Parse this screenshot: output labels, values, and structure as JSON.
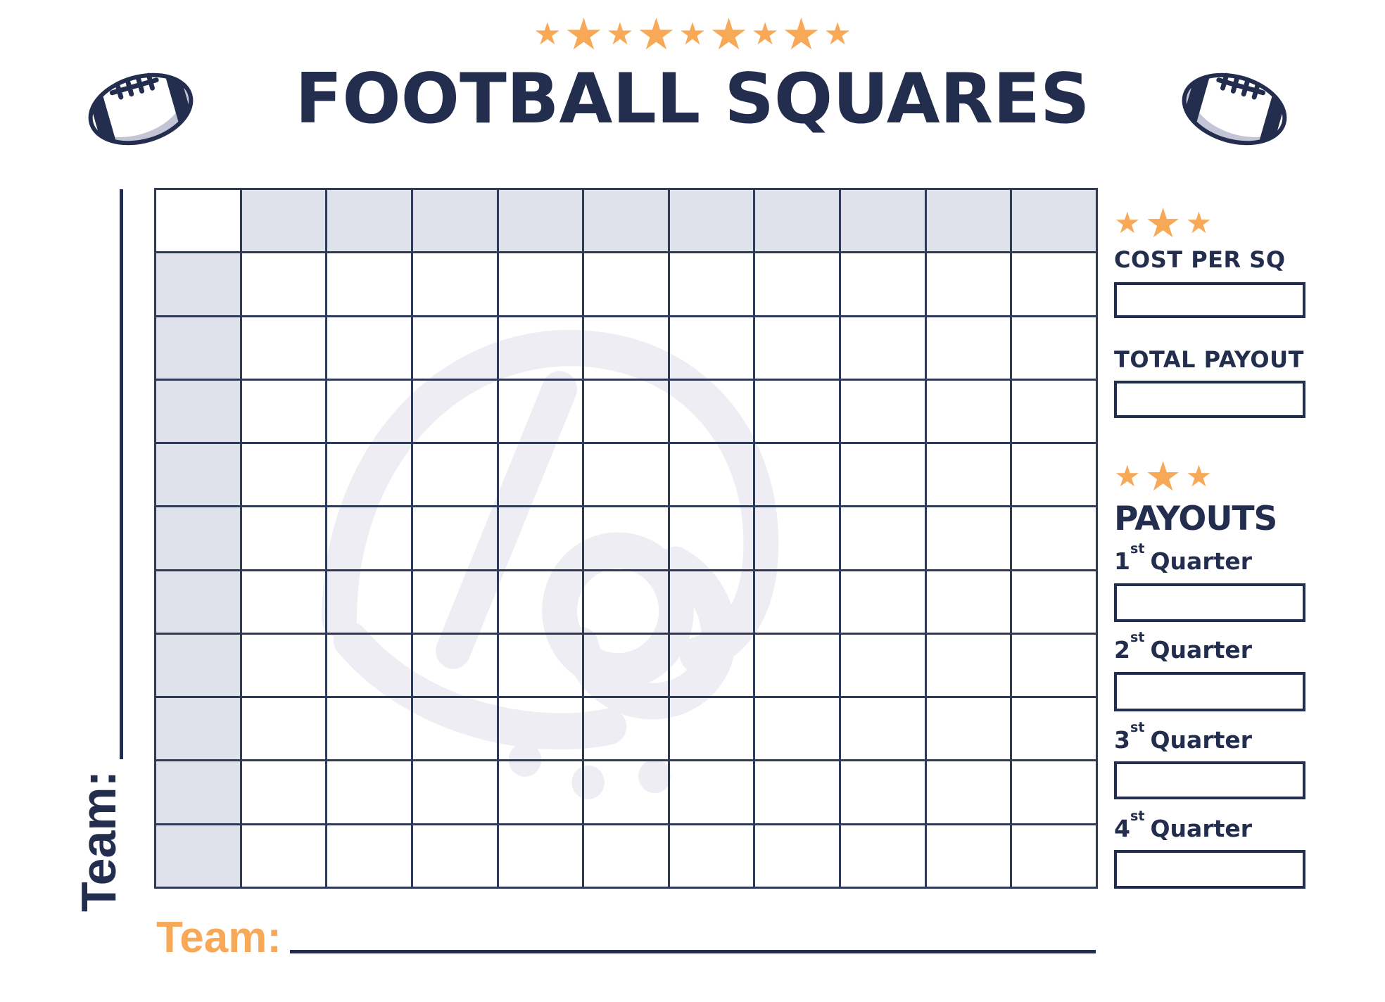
{
  "header": {
    "title": "FOOTBALL SQUARES",
    "top_star_count": 9
  },
  "grid": {
    "rows": 11,
    "cols": 11
  },
  "teams": {
    "left_label": "Team:",
    "bottom_label": "Team:"
  },
  "panel": {
    "star_count": 3,
    "cost_label": "COST PER SQ",
    "total_label": "TOTAL PAYOUT",
    "payouts_title": "PAYOUTS",
    "quarters": [
      {
        "num": "1",
        "sup": "st",
        "word": "Quarter"
      },
      {
        "num": "2",
        "sup": "st",
        "word": "Quarter"
      },
      {
        "num": "3",
        "sup": "st",
        "word": "Quarter"
      },
      {
        "num": "4",
        "sup": "st",
        "word": "Quarter"
      }
    ]
  },
  "colors": {
    "navy": "#232d4e",
    "orange": "#f7a958",
    "cell_gray": "#dfe1eb",
    "grid_line": "#2f3a59",
    "watermark": "#ededf3",
    "football_shadow": "#c3c5d6"
  }
}
